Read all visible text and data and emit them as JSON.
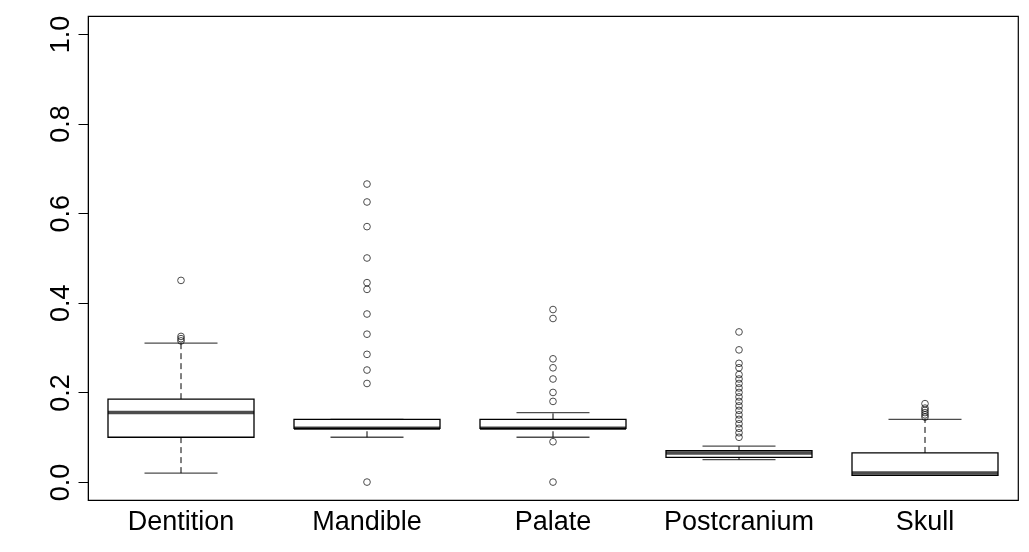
{
  "chart_data": {
    "type": "box",
    "categories": [
      "Dentition",
      "Mandible",
      "Palate",
      "Postcranium",
      "Skull"
    ],
    "boxes": [
      {
        "low": 0.02,
        "q1": 0.1,
        "median": 0.155,
        "q3": 0.185,
        "high": 0.31,
        "outliers": [
          0.315,
          0.32,
          0.325,
          0.45
        ]
      },
      {
        "low": 0.1,
        "q1": 0.12,
        "median": 0.12,
        "q3": 0.14,
        "high": 0.14,
        "outliers": [
          0.0,
          0.22,
          0.25,
          0.285,
          0.33,
          0.375,
          0.43,
          0.445,
          0.5,
          0.57,
          0.625,
          0.665
        ]
      },
      {
        "low": 0.1,
        "q1": 0.12,
        "median": 0.12,
        "q3": 0.14,
        "high": 0.155,
        "outliers": [
          0.0,
          0.09,
          0.18,
          0.2,
          0.23,
          0.255,
          0.275,
          0.365,
          0.385
        ]
      },
      {
        "low": 0.05,
        "q1": 0.055,
        "median": 0.065,
        "q3": 0.07,
        "high": 0.08,
        "outliers": [
          0.1,
          0.11,
          0.12,
          0.13,
          0.14,
          0.15,
          0.16,
          0.17,
          0.18,
          0.19,
          0.2,
          0.21,
          0.22,
          0.23,
          0.24,
          0.255,
          0.265,
          0.295,
          0.335
        ]
      },
      {
        "low": 0.015,
        "q1": 0.015,
        "median": 0.02,
        "q3": 0.065,
        "high": 0.14,
        "outliers": [
          0.145,
          0.15,
          0.155,
          0.16,
          0.165,
          0.175
        ]
      }
    ],
    "ylim": [
      -0.04,
      1.04
    ],
    "yticks": [
      {
        "value": 0,
        "label": "0.0"
      },
      0.2,
      0.4,
      0.6,
      0.8,
      {
        "value": 1,
        "label": "1.0"
      }
    ],
    "grid": false
  }
}
